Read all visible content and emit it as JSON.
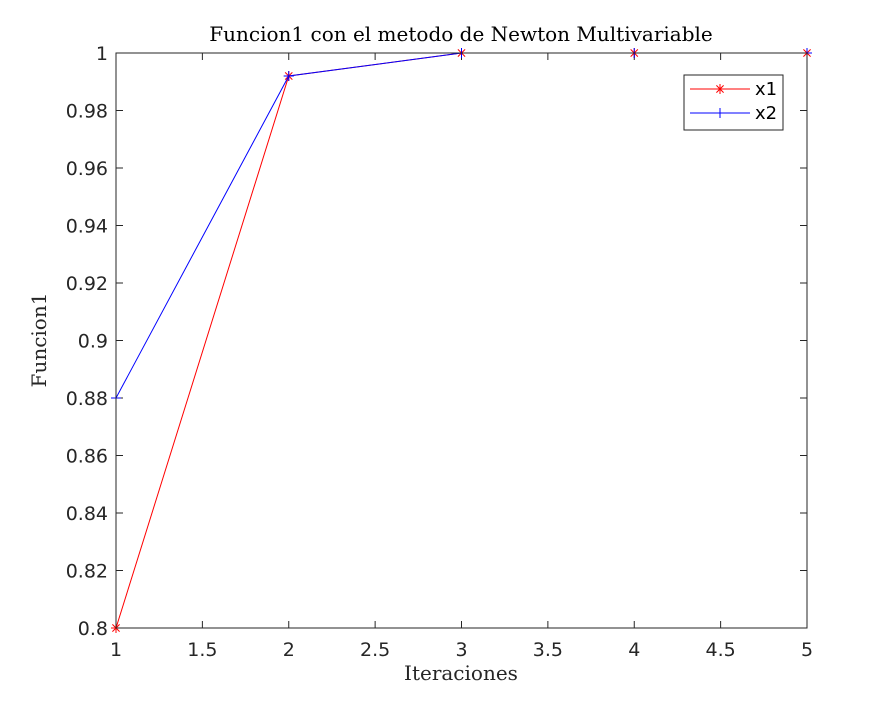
{
  "chart_data": {
    "type": "line",
    "title": "Funcion1 con el metodo de Newton Multivariable",
    "xlabel": "Iteraciones",
    "ylabel": "Funcion1",
    "xlim": [
      1,
      5
    ],
    "ylim": [
      0.8,
      1
    ],
    "xticks": [
      "1",
      "1.5",
      "2",
      "2.5",
      "3",
      "3.5",
      "4",
      "4.5",
      "5"
    ],
    "yticks": [
      "0.8",
      "0.82",
      "0.84",
      "0.86",
      "0.88",
      "0.9",
      "0.92",
      "0.94",
      "0.96",
      "0.98",
      "1"
    ],
    "grid": false,
    "legend_position": "top-right",
    "x": [
      1,
      2,
      3,
      4,
      5
    ],
    "series": [
      {
        "name": "x1",
        "values": [
          0.8,
          0.992,
          1.0,
          1.0,
          1.0
        ],
        "color": "#ff0000",
        "marker": "asterisk"
      },
      {
        "name": "x2",
        "values": [
          0.88,
          0.992,
          1.0,
          1.0,
          1.0
        ],
        "color": "#0000ff",
        "marker": "plus"
      }
    ]
  }
}
